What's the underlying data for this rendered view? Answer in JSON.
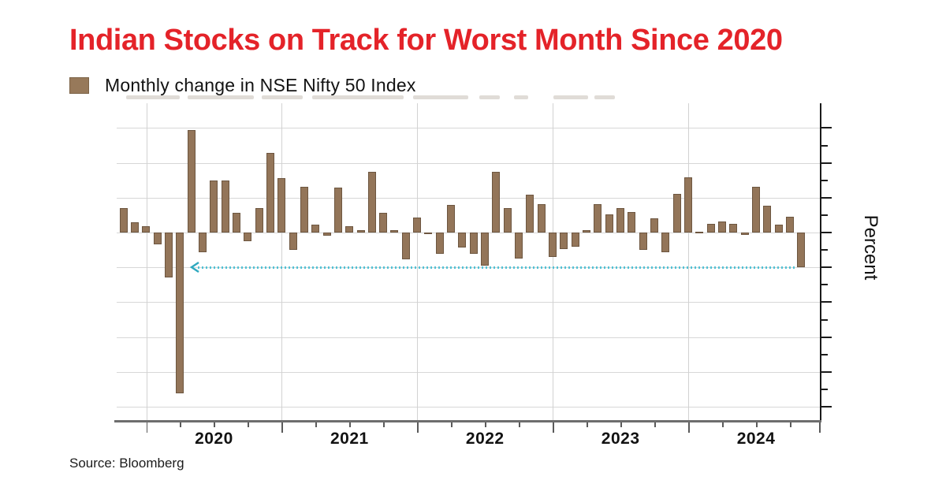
{
  "title": "Indian Stocks on Track for Worst Month Since 2020",
  "legend": {
    "label": "Monthly change in NSE Nifty 50 Index",
    "swatch_color": "#97795a"
  },
  "source": "Source: Bloomberg",
  "colors": {
    "title_red": "#e42329",
    "bar_fill": "#937559",
    "bar_border": "#6d5640",
    "gridline": "#d7d7d7",
    "dotted_line": "#54c2d4",
    "arrowhead": "#2fa9bf",
    "axis_spine": "#1a1a1a"
  },
  "chart_data": {
    "type": "bar",
    "title": "Indian Stocks on Track for Worst Month Since 2020",
    "series_name": "Monthly change in NSE Nifty 50 Index",
    "xlabel": "",
    "ylabel": "Percent",
    "unit": "percent",
    "x": [
      "2019-10",
      "2019-11",
      "2019-12",
      "2020-01",
      "2020-02",
      "2020-03",
      "2020-04",
      "2020-05",
      "2020-06",
      "2020-07",
      "2020-08",
      "2020-09",
      "2020-10",
      "2020-11",
      "2020-12",
      "2021-01",
      "2021-02",
      "2021-03",
      "2021-04",
      "2021-05",
      "2021-06",
      "2021-07",
      "2021-08",
      "2021-09",
      "2021-10",
      "2021-11",
      "2021-12",
      "2022-01",
      "2022-02",
      "2022-03",
      "2022-04",
      "2022-05",
      "2022-06",
      "2022-07",
      "2022-08",
      "2022-09",
      "2022-10",
      "2022-11",
      "2022-12",
      "2023-01",
      "2023-02",
      "2023-03",
      "2023-04",
      "2023-05",
      "2023-06",
      "2023-07",
      "2023-08",
      "2023-09",
      "2023-10",
      "2023-11",
      "2023-12",
      "2024-01",
      "2024-02",
      "2024-03",
      "2024-04",
      "2024-05",
      "2024-06",
      "2024-07",
      "2024-08",
      "2024-09",
      "2024-10"
    ],
    "values": [
      3.5,
      1.5,
      0.9,
      -1.7,
      -6.4,
      -23.1,
      14.7,
      -2.8,
      7.5,
      7.5,
      2.8,
      -1.2,
      3.5,
      11.4,
      7.8,
      -2.5,
      6.6,
      1.1,
      -0.4,
      6.5,
      0.9,
      0.3,
      8.7,
      2.8,
      0.3,
      -3.9,
      2.2,
      -0.1,
      -3.1,
      4.0,
      -2.1,
      -3.0,
      -4.8,
      8.7,
      3.5,
      -3.7,
      5.4,
      4.1,
      -3.5,
      -2.4,
      -2.0,
      0.3,
      4.1,
      2.6,
      3.5,
      2.9,
      -2.5,
      2.0,
      -2.8,
      5.5,
      7.9,
      0.0,
      1.2,
      1.6,
      1.2,
      -0.3,
      6.6,
      3.9,
      1.1,
      2.3,
      -5.0
    ],
    "xtick_labels": [
      "2020",
      "2021",
      "2022",
      "2023",
      "2024"
    ],
    "ylim": [
      -26.9,
      18.5
    ],
    "y_major_tick_step": 5,
    "y_minor_tick_step": 2.5,
    "y_axis_side": "right",
    "x_major_ticks": "year-start",
    "x_minor_ticks": "quarterly",
    "grid": true,
    "legend_position": "top-left",
    "annotation": {
      "type": "dotted-arrow-line",
      "y_value": -5.0,
      "from_month": "2024-10",
      "points_left_toward": "2020",
      "meaning": "October 2024 decline level matched against 2020"
    }
  }
}
